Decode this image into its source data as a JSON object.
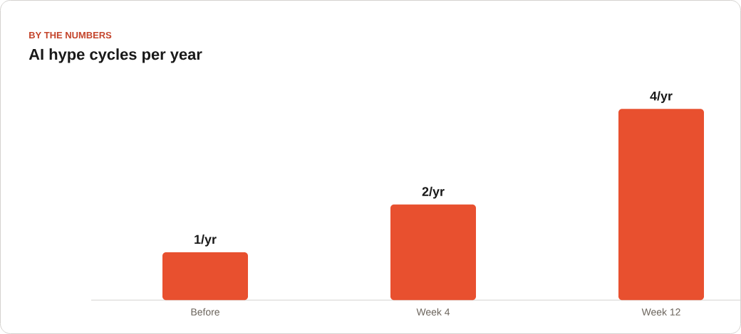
{
  "chart_data": {
    "type": "bar",
    "subtitle": "BY THE NUMBERS",
    "title": "AI hype cycles per year",
    "categories": [
      "Before",
      "Week 4",
      "Week 12"
    ],
    "values": [
      1,
      2,
      4
    ],
    "value_labels": [
      "1/yr",
      "2/yr",
      "4/yr"
    ],
    "color": "#e8502f"
  }
}
